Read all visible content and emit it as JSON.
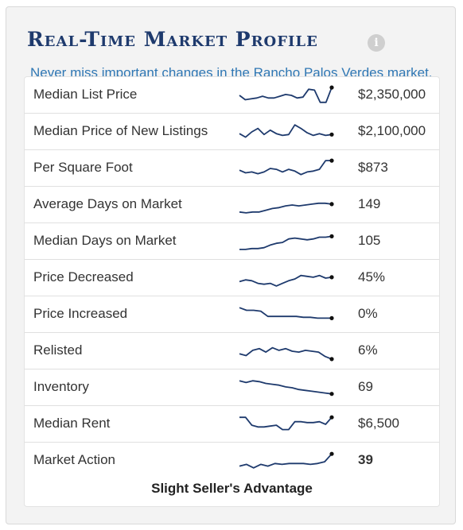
{
  "widget": {
    "title": "Real-Time Market Profile",
    "info_icon": "info-icon",
    "subtitle": "Never miss important changes in the Rancho Palos Verdes market.",
    "colors": {
      "title": "#1e3a6d",
      "subtitle": "#2f77b4",
      "sparkline": "#1e3a6d"
    }
  },
  "rows": [
    {
      "label": "Median List Price",
      "value": "$2,350,000",
      "trend": [
        0.5,
        0.25,
        0.3,
        0.35,
        0.45,
        0.35,
        0.35,
        0.45,
        0.55,
        0.5,
        0.35,
        0.4,
        0.85,
        0.8,
        0.1,
        0.1,
        0.95
      ]
    },
    {
      "label": "Median Price of New Listings",
      "value": "$2,100,000",
      "trend": [
        0.4,
        0.2,
        0.5,
        0.7,
        0.35,
        0.6,
        0.4,
        0.3,
        0.35,
        0.9,
        0.7,
        0.45,
        0.3,
        0.4,
        0.3,
        0.35
      ]
    },
    {
      "label": "Per Square Foot",
      "value": "$873",
      "trend": [
        0.4,
        0.25,
        0.3,
        0.2,
        0.3,
        0.5,
        0.45,
        0.3,
        0.45,
        0.35,
        0.15,
        0.3,
        0.35,
        0.45,
        0.95,
        0.95
      ]
    },
    {
      "label": "Average Days on Market",
      "value": "149",
      "trend": [
        0.1,
        0.05,
        0.1,
        0.1,
        0.2,
        0.3,
        0.35,
        0.45,
        0.5,
        0.45,
        0.5,
        0.55,
        0.6,
        0.6,
        0.55
      ]
    },
    {
      "label": "Median Days on Market",
      "value": "105",
      "trend": [
        0.05,
        0.05,
        0.1,
        0.1,
        0.15,
        0.3,
        0.4,
        0.45,
        0.65,
        0.7,
        0.65,
        0.6,
        0.65,
        0.75,
        0.75,
        0.8
      ]
    },
    {
      "label": "Price Decreased",
      "value": "45%",
      "trend": [
        0.3,
        0.4,
        0.35,
        0.2,
        0.15,
        0.2,
        0.05,
        0.2,
        0.35,
        0.45,
        0.65,
        0.6,
        0.55,
        0.65,
        0.5,
        0.55
      ]
    },
    {
      "label": "Price Increased",
      "value": "0%",
      "trend": [
        0.9,
        0.75,
        0.75,
        0.7,
        0.4,
        0.4,
        0.4,
        0.4,
        0.4,
        0.35,
        0.35,
        0.3,
        0.3,
        0.3
      ]
    },
    {
      "label": "Relisted",
      "value": "6%",
      "trend": [
        0.35,
        0.25,
        0.55,
        0.65,
        0.45,
        0.7,
        0.55,
        0.65,
        0.5,
        0.45,
        0.55,
        0.5,
        0.45,
        0.2,
        0.05
      ]
    },
    {
      "label": "Inventory",
      "value": "69",
      "trend": [
        0.9,
        0.8,
        0.9,
        0.85,
        0.75,
        0.7,
        0.65,
        0.55,
        0.5,
        0.4,
        0.35,
        0.3,
        0.25,
        0.2,
        0.15
      ]
    },
    {
      "label": "Median Rent",
      "value": "$6,500",
      "trend": [
        0.9,
        0.9,
        0.45,
        0.35,
        0.35,
        0.4,
        0.45,
        0.2,
        0.2,
        0.65,
        0.65,
        0.6,
        0.6,
        0.65,
        0.5,
        0.9
      ]
    },
    {
      "label": "Market Action",
      "value": "39",
      "value_bold": true,
      "trend": [
        0.2,
        0.3,
        0.1,
        0.3,
        0.2,
        0.35,
        0.3,
        0.35,
        0.35,
        0.35,
        0.3,
        0.35,
        0.45,
        0.9
      ]
    }
  ],
  "verdict": "Slight Seller's Advantage"
}
